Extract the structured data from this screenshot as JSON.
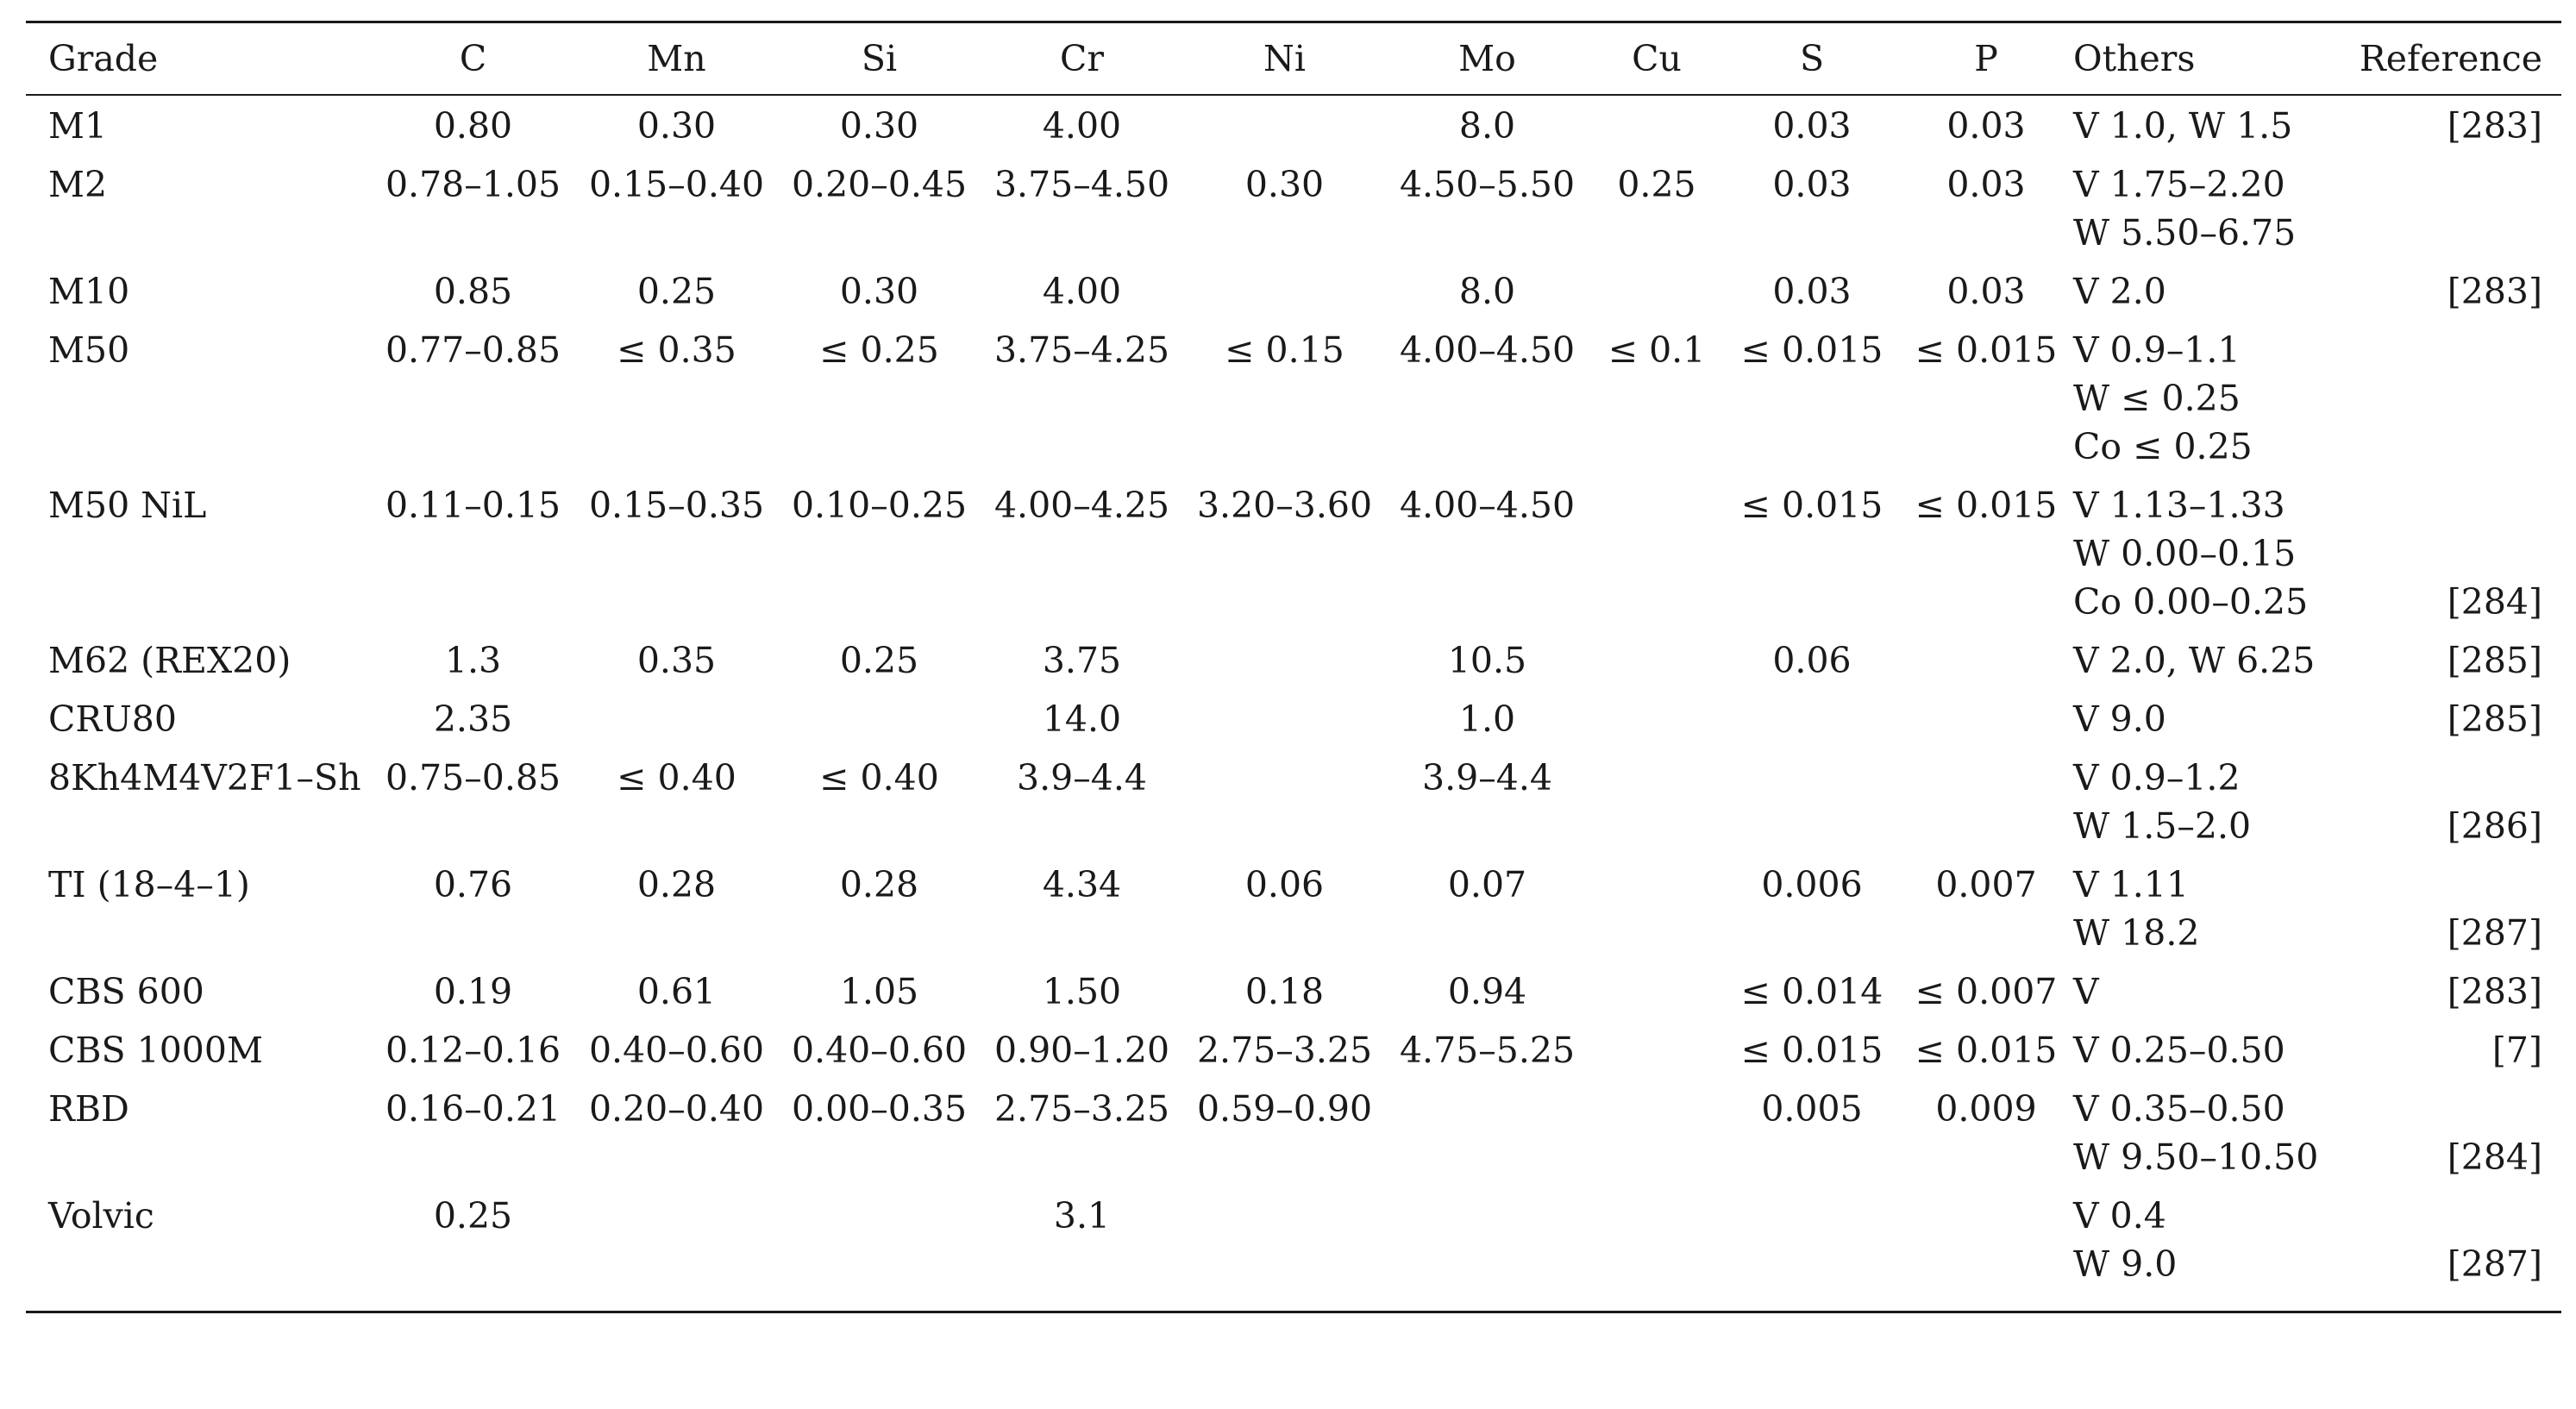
{
  "table": {
    "headers": [
      "Grade",
      "C",
      "Mn",
      "Si",
      "Cr",
      "Ni",
      "Mo",
      "Cu",
      "S",
      "P",
      "Others",
      "Reference"
    ],
    "rows": [
      {
        "grade": "M1",
        "c": "0.80",
        "mn": "0.30",
        "si": "0.30",
        "cr": "4.00",
        "ni": "",
        "mo": "8.0",
        "cu": "",
        "s": "0.03",
        "p": "0.03",
        "others": [
          "V 1.0, W 1.5"
        ],
        "ref": "[283]"
      },
      {
        "grade": "M2",
        "c": "0.78–1.05",
        "mn": "0.15–0.40",
        "si": "0.20–0.45",
        "cr": "3.75–4.50",
        "ni": "0.30",
        "mo": "4.50–5.50",
        "cu": "0.25",
        "s": "0.03",
        "p": "0.03",
        "others": [
          "V 1.75–2.20",
          "W 5.50–6.75"
        ],
        "ref": ""
      },
      {
        "grade": "M10",
        "c": "0.85",
        "mn": "0.25",
        "si": "0.30",
        "cr": "4.00",
        "ni": "",
        "mo": "8.0",
        "cu": "",
        "s": "0.03",
        "p": "0.03",
        "others": [
          "V 2.0"
        ],
        "ref": "[283]"
      },
      {
        "grade": "M50",
        "c": "0.77–0.85",
        "mn": "≤ 0.35",
        "si": "≤ 0.25",
        "cr": "3.75–4.25",
        "ni": "≤ 0.15",
        "mo": "4.00–4.50",
        "cu": "≤ 0.1",
        "s": "≤ 0.015",
        "p": "≤ 0.015",
        "others": [
          "V 0.9–1.1",
          "W ≤ 0.25",
          "Co ≤ 0.25"
        ],
        "ref": ""
      },
      {
        "grade": "M50 NiL",
        "c": "0.11–0.15",
        "mn": "0.15–0.35",
        "si": "0.10–0.25",
        "cr": "4.00–4.25",
        "ni": "3.20–3.60",
        "mo": "4.00–4.50",
        "cu": "",
        "s": "≤ 0.015",
        "p": "≤ 0.015",
        "others": [
          "V 1.13–1.33",
          "W 0.00–0.15",
          "Co 0.00–0.25"
        ],
        "ref": "[284]"
      },
      {
        "grade": "M62 (REX20)",
        "c": "1.3",
        "mn": "0.35",
        "si": "0.25",
        "cr": "3.75",
        "ni": "",
        "mo": "10.5",
        "cu": "",
        "s": "0.06",
        "p": "",
        "others": [
          "V 2.0, W 6.25"
        ],
        "ref": "[285]"
      },
      {
        "grade": "CRU80",
        "c": "2.35",
        "mn": "",
        "si": "",
        "cr": "14.0",
        "ni": "",
        "mo": "1.0",
        "cu": "",
        "s": "",
        "p": "",
        "others": [
          "V 9.0"
        ],
        "ref": "[285]"
      },
      {
        "grade": "8Kh4M4V2F1–Sh",
        "c": "0.75–0.85",
        "mn": "≤ 0.40",
        "si": "≤ 0.40",
        "cr": "3.9–4.4",
        "ni": "",
        "mo": "3.9–4.4",
        "cu": "",
        "s": "",
        "p": "",
        "others": [
          "V 0.9–1.2",
          "W 1.5–2.0"
        ],
        "ref": "[286]"
      },
      {
        "grade": "TI (18–4–1)",
        "c": "0.76",
        "mn": "0.28",
        "si": "0.28",
        "cr": "4.34",
        "ni": "0.06",
        "mo": "0.07",
        "cu": "",
        "s": "0.006",
        "p": "0.007",
        "others": [
          "V 1.11",
          "W 18.2"
        ],
        "ref": "[287]"
      },
      {
        "grade": "CBS 600",
        "c": "0.19",
        "mn": "0.61",
        "si": "1.05",
        "cr": "1.50",
        "ni": "0.18",
        "mo": "0.94",
        "cu": "",
        "s": "≤ 0.014",
        "p": "≤ 0.007",
        "others": [
          "V"
        ],
        "ref": "[283]"
      },
      {
        "grade": "CBS 1000M",
        "c": "0.12–0.16",
        "mn": "0.40–0.60",
        "si": "0.40–0.60",
        "cr": "0.90–1.20",
        "ni": "2.75–3.25",
        "mo": "4.75–5.25",
        "cu": "",
        "s": "≤ 0.015",
        "p": "≤ 0.015",
        "others": [
          "V 0.25–0.50"
        ],
        "ref": "[7]"
      },
      {
        "grade": "RBD",
        "c": "0.16–0.21",
        "mn": "0.20–0.40",
        "si": "0.00–0.35",
        "cr": "2.75–3.25",
        "ni": "0.59–0.90",
        "mo": "",
        "cu": "",
        "s": "0.005",
        "p": "0.009",
        "others": [
          "V 0.35–0.50",
          "W 9.50–10.50"
        ],
        "ref": "[284]"
      },
      {
        "grade": "Volvic",
        "c": "0.25",
        "mn": "",
        "si": "",
        "cr": "3.1",
        "ni": "",
        "mo": "",
        "cu": "",
        "s": "",
        "p": "",
        "others": [
          "V 0.4",
          "W 9.0"
        ],
        "ref": "[287]"
      }
    ]
  }
}
